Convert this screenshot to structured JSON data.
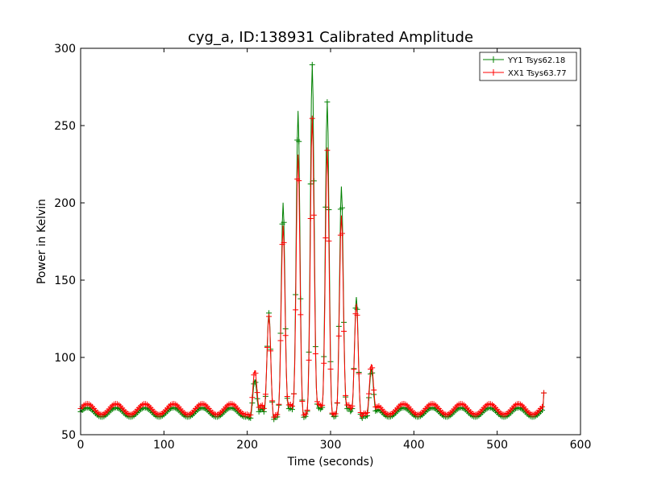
{
  "chart_data": {
    "type": "line",
    "title": "cyg_a, ID:138931 Calibrated Amplitude",
    "xlabel": "Time (seconds)",
    "ylabel": "Power in Kelvin",
    "xlim": [
      0,
      600
    ],
    "ylim": [
      50,
      300
    ],
    "xticks": [
      0,
      100,
      200,
      300,
      400,
      500,
      600
    ],
    "yticks": [
      50,
      100,
      150,
      200,
      250,
      300
    ],
    "grid": false,
    "legend_position": "top-right",
    "marker": "+",
    "x_end": 556,
    "series": [
      {
        "name": "YY1 Tsys62.18",
        "color": "#008000",
        "baseline": 64.5,
        "ripple_amplitude": 3,
        "ripple_period_s": 34.5,
        "peaks": [
          [
            209,
            84
          ],
          [
            226,
            130
          ],
          [
            243,
            199
          ],
          [
            261,
            261
          ],
          [
            278,
            288
          ],
          [
            296,
            267
          ],
          [
            313,
            209
          ],
          [
            331,
            141
          ],
          [
            349,
            90
          ]
        ],
        "end_value": 77
      },
      {
        "name": "XX1 Tsys63.77",
        "color": "#ff0000",
        "baseline": 66.5,
        "ripple_amplitude": 3.5,
        "ripple_period_s": 34.5,
        "peaks": [
          [
            209,
            90
          ],
          [
            226,
            128
          ],
          [
            243,
            184
          ],
          [
            261,
            233
          ],
          [
            278,
            253
          ],
          [
            296,
            236
          ],
          [
            313,
            190
          ],
          [
            331,
            137
          ],
          [
            349,
            93
          ]
        ],
        "end_value": 77
      }
    ]
  }
}
